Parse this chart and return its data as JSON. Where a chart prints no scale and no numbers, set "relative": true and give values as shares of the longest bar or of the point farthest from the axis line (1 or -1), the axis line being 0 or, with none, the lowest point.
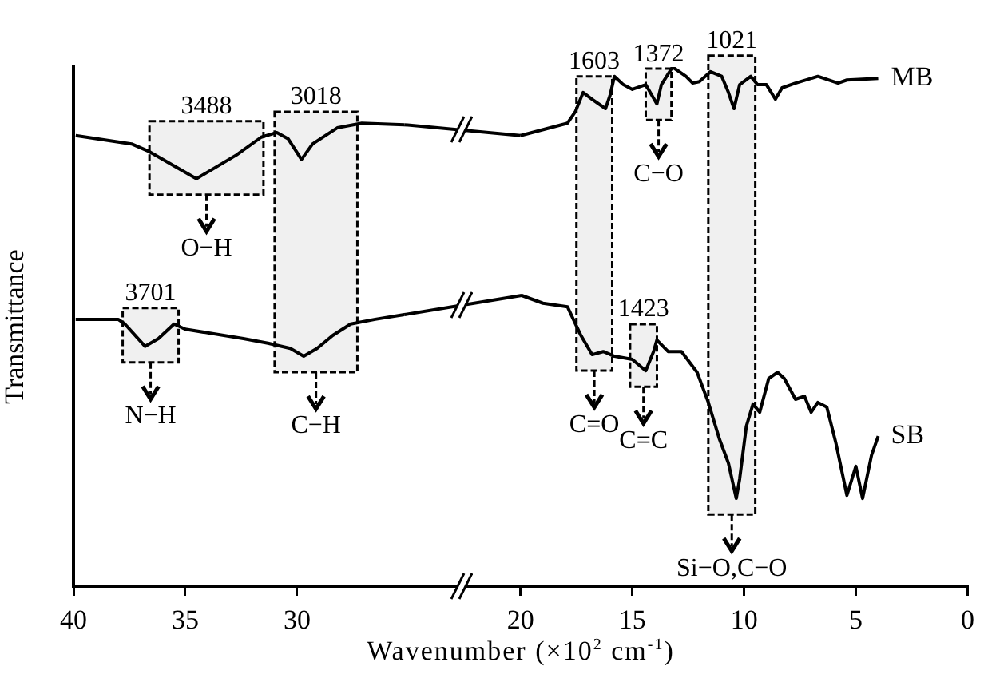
{
  "chart_data": {
    "type": "line",
    "xlabel": "Wavenumber (×10$^{2}$ cm$^{-1}$)",
    "ylabel": "Transmittance",
    "relative": true,
    "marker": "none",
    "line_style": "solid",
    "xlim": [
      40,
      0
    ],
    "xticks": [
      40,
      35,
      30,
      20,
      15,
      10,
      5,
      0
    ],
    "series": [
      {
        "name": "MB",
        "color": "#000000",
        "x": [
          39.9,
          37.4,
          36.6,
          34.5,
          32.7,
          31.6,
          30.9,
          30.4,
          29.8,
          29.3,
          28.2,
          27.1,
          25.2,
          20.0,
          17.9,
          17.55,
          17.2,
          16.8,
          16.2,
          16.0,
          15.8,
          15.4,
          15.0,
          14.4,
          13.9,
          13.7,
          13.2,
          12.6,
          12.3,
          12.0,
          11.5,
          11.0,
          10.7,
          10.45,
          10.2,
          9.7,
          9.4,
          9.0,
          8.6,
          8.3,
          7.7,
          6.7,
          5.8,
          5.4,
          4.0
        ],
        "values": [
          0.868,
          0.852,
          0.837,
          0.785,
          0.831,
          0.865,
          0.874,
          0.862,
          0.822,
          0.852,
          0.883,
          0.892,
          0.889,
          0.868,
          0.892,
          0.914,
          0.951,
          0.938,
          0.92,
          0.945,
          0.982,
          0.966,
          0.957,
          0.966,
          0.929,
          0.966,
          1.0,
          0.982,
          0.969,
          0.972,
          0.991,
          0.982,
          0.951,
          0.92,
          0.966,
          0.982,
          0.966,
          0.966,
          0.938,
          0.96,
          0.969,
          0.982,
          0.969,
          0.975,
          0.978
        ]
      },
      {
        "name": "SB",
        "color": "#000000",
        "x": [
          39.9,
          38.0,
          37.7,
          36.8,
          36.2,
          35.5,
          35.0,
          32.4,
          31.3,
          30.3,
          29.7,
          29.1,
          28.4,
          27.6,
          26.5,
          25.2,
          19.95,
          19.0,
          17.9,
          17.3,
          16.8,
          16.3,
          15.8,
          15.0,
          14.4,
          14.05,
          13.9,
          13.4,
          12.8,
          12.1,
          11.6,
          11.1,
          10.7,
          10.35,
          10.2,
          9.9,
          9.6,
          9.3,
          8.9,
          8.5,
          8.2,
          7.7,
          7.3,
          7.0,
          6.7,
          6.3,
          5.9,
          5.4,
          5.0,
          4.7,
          4.3,
          4.0
        ],
        "values": [
          0.514,
          0.514,
          0.505,
          0.462,
          0.477,
          0.505,
          0.495,
          0.477,
          0.468,
          0.458,
          0.443,
          0.458,
          0.483,
          0.505,
          0.514,
          0.523,
          0.56,
          0.545,
          0.538,
          0.483,
          0.446,
          0.452,
          0.443,
          0.437,
          0.415,
          0.452,
          0.474,
          0.452,
          0.452,
          0.412,
          0.354,
          0.283,
          0.237,
          0.169,
          0.206,
          0.308,
          0.351,
          0.335,
          0.4,
          0.412,
          0.4,
          0.36,
          0.366,
          0.335,
          0.354,
          0.345,
          0.277,
          0.175,
          0.231,
          0.169,
          0.252,
          0.289
        ]
      }
    ],
    "bands": [
      {
        "axis": "x",
        "from": 36.6,
        "to": 31.5,
        "color": "#000000",
        "label": "3488"
      },
      {
        "axis": "x",
        "from": 31.0,
        "to": 27.3,
        "color": "#000000",
        "label": "3018"
      },
      {
        "axis": "x",
        "from": 17.5,
        "to": 15.9,
        "color": "#000000",
        "label": "1603"
      },
      {
        "axis": "x",
        "from": 14.4,
        "to": 13.25,
        "color": "#000000",
        "label": "1372"
      },
      {
        "axis": "x",
        "from": 11.6,
        "to": 9.5,
        "color": "#000000",
        "label": "1021"
      },
      {
        "axis": "x",
        "from": 37.8,
        "to": 35.3,
        "color": "#000000",
        "label": "3701"
      },
      {
        "axis": "x",
        "from": 15.1,
        "to": 13.9,
        "color": "#000000",
        "label": "1423"
      }
    ],
    "annotations": [
      "O−H",
      "C−H",
      "C=O",
      "C−O",
      "Si−O,C−O",
      "N−H",
      "C=C"
    ]
  }
}
